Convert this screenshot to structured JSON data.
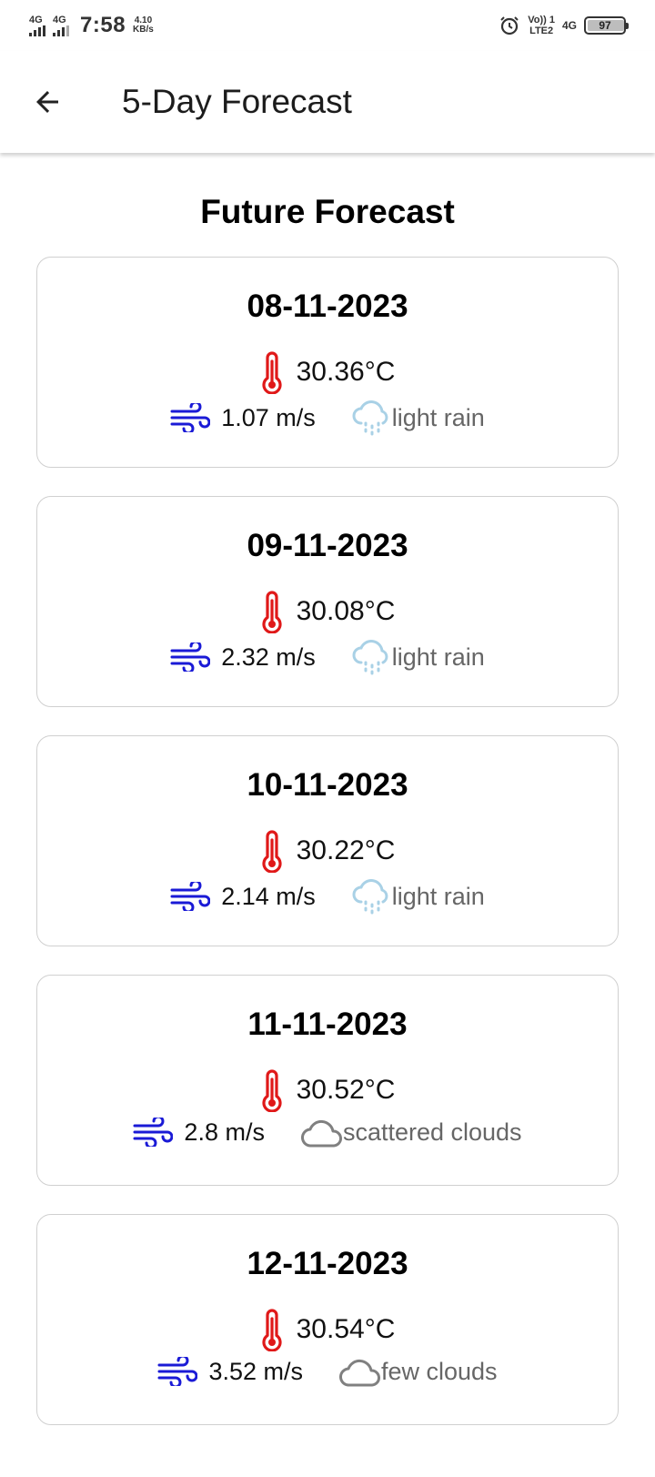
{
  "status_bar": {
    "network1": "4G",
    "network2": "4G",
    "time": "7:58",
    "speed_value": "4.10",
    "speed_unit": "KB/s",
    "volte_top": "Vo)) 1",
    "volte_bottom": "LTE2",
    "network3": "4G",
    "battery": "97"
  },
  "app_bar": {
    "back_icon": "arrow-left-icon",
    "title": "5-Day Forecast"
  },
  "section_title": "Future Forecast",
  "colors": {
    "thermometer": "#e01919",
    "wind": "#1a1ad6",
    "rain_cloud": "#a9d1e6",
    "cloud": "#808080"
  },
  "forecasts": [
    {
      "date": "08-11-2023",
      "temp": "30.36°C",
      "wind": "1.07 m/s",
      "weather_icon": "rain-cloud-icon",
      "description": "light rain"
    },
    {
      "date": "09-11-2023",
      "temp": "30.08°C",
      "wind": "2.32 m/s",
      "weather_icon": "rain-cloud-icon",
      "description": "light rain"
    },
    {
      "date": "10-11-2023",
      "temp": "30.22°C",
      "wind": "2.14 m/s",
      "weather_icon": "rain-cloud-icon",
      "description": "light rain"
    },
    {
      "date": "11-11-2023",
      "temp": "30.52°C",
      "wind": "2.8 m/s",
      "weather_icon": "cloud-icon",
      "description": "scattered clouds"
    },
    {
      "date": "12-11-2023",
      "temp": "30.54°C",
      "wind": "3.52 m/s",
      "weather_icon": "cloud-icon",
      "description": "few clouds"
    }
  ]
}
